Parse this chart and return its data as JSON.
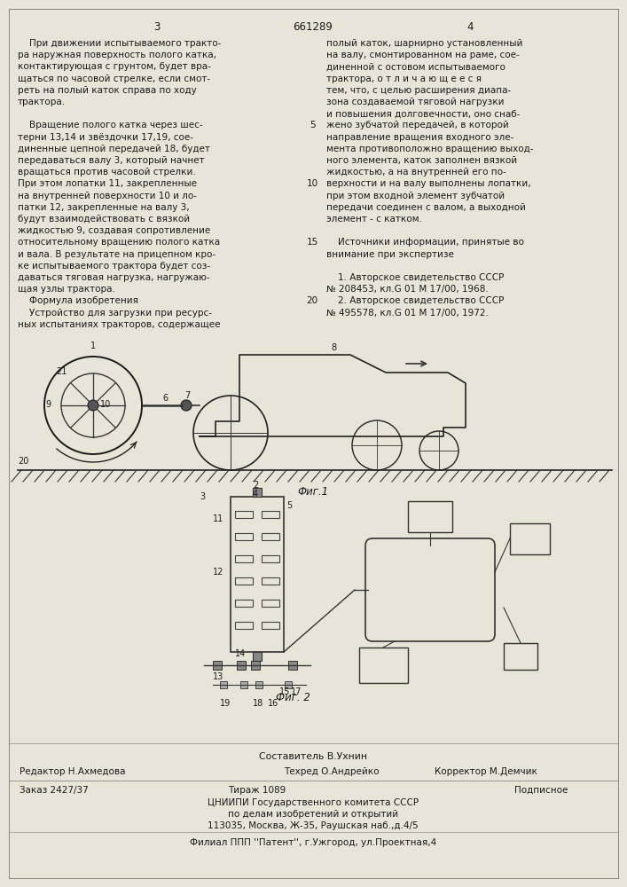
{
  "page_color": "#e8e4d8",
  "header": {
    "left_num": "3",
    "center_num": "661289",
    "right_num": "4"
  },
  "left_column_text": [
    "    При движении испытываемого тракто-",
    "ра наружная поверхность полого катка,",
    "контактирующая с грунтом, будет вра-",
    "щаться по часовой стрелке, если смот-",
    "реть на полый каток справа по ходу",
    "трактора.",
    "",
    "    Вращение полого катка через шес-",
    "терни 13,14 и звёздочки 17,19, сое-",
    "диненные цепной передачей 18, будет",
    "передаваться валу 3, который начнет",
    "вращаться против часовой стрелки.",
    "При этом лопатки 11, закрепленные",
    "на внутренней поверхности 10 и ло-",
    "патки 12, закрепленные на валу 3,",
    "будут взаимодействовать с вязкой",
    "жидкостью 9, создавая сопротивление",
    "относительному вращению полого катка 15",
    "и вала. В результате на прицепном кро-",
    "ке испытываемого трактора будет соз-",
    "даваться тяговая нагрузка, нагружаю-",
    "щая узлы трактора.",
    "    Формула изобретения",
    "    Устройство для загрузки при ресурс-",
    "ных испытаниях тракторов, содержащее"
  ],
  "line_numbers": [
    {
      "text": "5",
      "line_idx": 7
    },
    {
      "text": "10",
      "line_idx": 12
    },
    {
      "text": "15",
      "line_idx": 17
    },
    {
      "text": "20",
      "line_idx": 22
    }
  ],
  "right_column_text": [
    "полый каток, шарнирно установленный",
    "на валу, смонтированном на раме, сое-",
    "диненной с остовом испытываемого",
    "трактора, о т л и ч а ю щ е е с я",
    "тем, что, с целью расширения диапа-",
    "зона создаваемой тяговой нагрузки",
    "и повышения долговечности, оно снаб-",
    "жено зубчатой передачей, в которой",
    "направление вращения входного эле-",
    "мента противоположно вращению выход-",
    "ного элемента, каток заполнен вязкой",
    "жидкостью, а на внутренней его по-",
    "верхности и на валу выполнены лопатки,",
    "при этом входной элемент зубчатой",
    "передачи соединен с валом, а выходной",
    "элемент - с катком.",
    "",
    "    Источники информации, принятые во",
    "внимание при экспертизе",
    "",
    "    1. Авторское свидетельство СССР",
    "№ 208453, кл.G 01 М 17/00, 1968.",
    "    2. Авторское свидетельство СССР",
    "№ 495578, кл.G 01 М 17/00, 1972."
  ],
  "fig1_label": "Фиг.1",
  "fig2_label": "Фиг. 2",
  "footer_compiler": "Составитель В.Ухнин",
  "footer_editor": "Редактор Н.Ахмедова",
  "footer_tech": "Техред О.Андрейко",
  "footer_corrector": "Корректор М.Демчик",
  "footer_order": "Заказ 2427/37",
  "footer_tirazh": "Тираж 1089",
  "footer_podpisnoe": "Подписное",
  "footer_org1": "ЦНИИПИ Государственного комитета СССР",
  "footer_org2": "по делам изобретений и открытий",
  "footer_addr": "113035, Москва, Ж-35, Раушская наб.,д.4/5",
  "footer_filial": "Филиал ППП ''Патент'', г.Ужгород, ул.Проектная,4"
}
